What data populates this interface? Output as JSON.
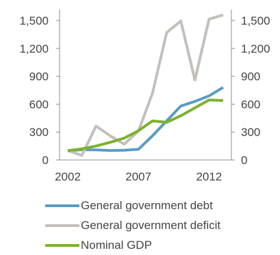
{
  "chart_data": {
    "type": "line",
    "x": [
      2002,
      2003,
      2004,
      2005,
      2006,
      2007,
      2008,
      2009,
      2010,
      2011,
      2012,
      2013
    ],
    "xticks": [
      2002,
      2007,
      2012
    ],
    "ylim": [
      0,
      1500
    ],
    "yticks": [
      0,
      300,
      600,
      900,
      1200,
      1500
    ],
    "ytick_labels": [
      "0",
      "300",
      "600",
      "900",
      "1,200",
      "1,500"
    ],
    "right_axis": true,
    "grid": false,
    "legend_position": "bottom",
    "series": [
      {
        "name": "General government debt",
        "color": "#5b9bc4",
        "values": [
          100,
          110,
          108,
          102,
          105,
          115,
          260,
          420,
          580,
          630,
          690,
          780
        ]
      },
      {
        "name": "General government deficit",
        "color": "#c4bfbb",
        "values": [
          100,
          50,
          365,
          260,
          170,
          310,
          720,
          1370,
          1495,
          860,
          1515,
          1560
        ]
      },
      {
        "name": "Nominal GDP",
        "color": "#7ab32e",
        "values": [
          100,
          120,
          150,
          190,
          235,
          315,
          420,
          405,
          475,
          560,
          645,
          640
        ]
      }
    ]
  }
}
